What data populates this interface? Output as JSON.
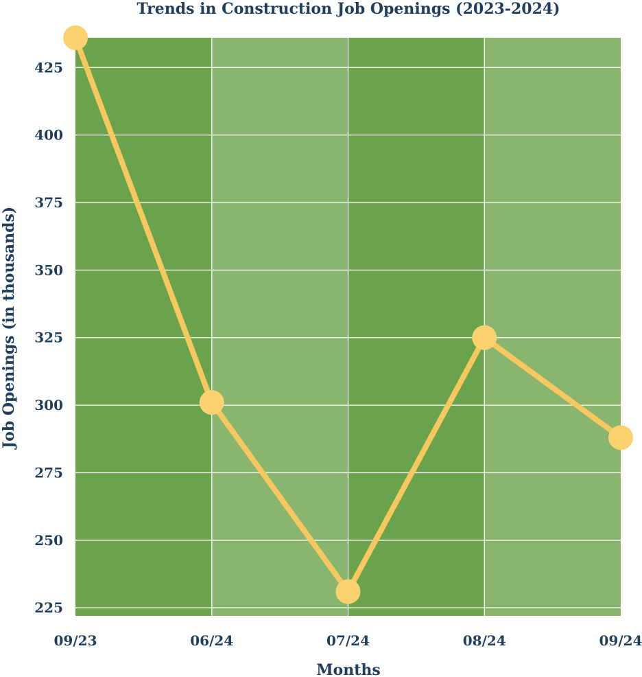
{
  "chart_data": {
    "type": "line",
    "title": "Trends in Construction Job Openings (2023-2024)",
    "xlabel": "Months",
    "ylabel": "Job Openings (in thousands)",
    "categories": [
      "09/23",
      "06/24",
      "07/24",
      "08/24",
      "09/24"
    ],
    "series": [
      {
        "values": [
          436,
          301,
          231,
          325,
          288
        ]
      }
    ],
    "ylim": [
      222,
      436
    ],
    "yticks": [
      225,
      250,
      275,
      300,
      325,
      350,
      375,
      400,
      425
    ],
    "grid": true,
    "legend": "none"
  },
  "colors": {
    "text": "#1f3e5e",
    "band_dark": "#6aa34b",
    "band_light": "#89b56f",
    "gridline": "#ffffff",
    "line": "#f5c860",
    "marker": "#fcd170"
  }
}
